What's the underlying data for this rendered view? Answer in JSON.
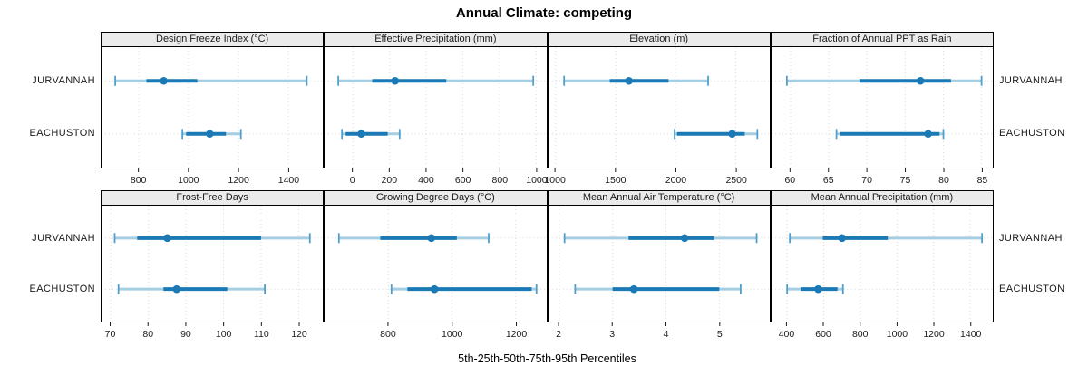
{
  "chart_data": {
    "type": "dotplot",
    "title": "Annual Climate: competing",
    "xlabel": "5th-25th-50th-75th-95th Percentiles",
    "rows": [
      "JURVANNAH",
      "EACHUSTON"
    ],
    "percentile_labels": [
      "5th",
      "25th",
      "50th",
      "75th",
      "95th"
    ],
    "legend_position": "none",
    "grid": "dotted",
    "colors": {
      "median_dot": "#1b7ab5",
      "iqr_line": "#1b7ab5",
      "range_line": "#a6cee3",
      "cap": "#4f9fca",
      "grid": "#d8d8d8",
      "strip_bg": "#ebebeb",
      "border": "#000000",
      "tick_text": "#1a1a1a"
    },
    "panels": [
      {
        "title": "Design Freeze Index (°C)",
        "xlim": [
          650,
          1540
        ],
        "ticks": [
          800,
          1000,
          1200,
          1400
        ],
        "series": [
          {
            "name": "JURVANNAH",
            "p": [
              705,
              830,
              900,
              1035,
              1475
            ]
          },
          {
            "name": "EACHUSTON",
            "p": [
              975,
              990,
              1085,
              1150,
              1210
            ]
          }
        ]
      },
      {
        "title": "Effective Precipitation (mm)",
        "xlim": [
          -155,
          1055
        ],
        "ticks": [
          0,
          200,
          400,
          600,
          800,
          1000
        ],
        "series": [
          {
            "name": "JURVANNAH",
            "p": [
              -80,
              105,
              230,
              510,
              985
            ]
          },
          {
            "name": "EACHUSTON",
            "p": [
              -60,
              -40,
              45,
              190,
              255
            ]
          }
        ]
      },
      {
        "title": "Elevation (m)",
        "xlim": [
          940,
          2785
        ],
        "ticks": [
          1000,
          1500,
          2000,
          2500
        ],
        "series": [
          {
            "name": "JURVANNAH",
            "p": [
              1070,
              1450,
              1610,
              1940,
              2270
            ]
          },
          {
            "name": "EACHUSTON",
            "p": [
              1990,
              2010,
              2470,
              2575,
              2680
            ]
          }
        ]
      },
      {
        "title": "Fraction of Annual PPT as Rain",
        "xlim": [
          57.5,
          86.5
        ],
        "ticks": [
          60,
          65,
          70,
          75,
          80,
          85
        ],
        "series": [
          {
            "name": "JURVANNAH",
            "p": [
              59.5,
              69,
              77,
              81,
              85
            ]
          },
          {
            "name": "EACHUSTON",
            "p": [
              66,
              66.5,
              78,
              79.5,
              80
            ]
          }
        ]
      },
      {
        "title": "Frost-Free Days",
        "xlim": [
          67.5,
          126.5
        ],
        "ticks": [
          70,
          80,
          90,
          100,
          110,
          120
        ],
        "series": [
          {
            "name": "JURVANNAH",
            "p": [
              71,
              77,
              85,
              110,
              123
            ]
          },
          {
            "name": "EACHUSTON",
            "p": [
              72,
              84,
              87.5,
              101,
              111
            ]
          }
        ]
      },
      {
        "title": "Growing Degree Days (°C)",
        "xlim": [
          600,
          1295
        ],
        "ticks": [
          800,
          1000,
          1200
        ],
        "series": [
          {
            "name": "JURVANNAH",
            "p": [
              645,
              775,
              935,
              1015,
              1115
            ]
          },
          {
            "name": "EACHUSTON",
            "p": [
              810,
              860,
              945,
              1250,
              1265
            ]
          }
        ]
      },
      {
        "title": "Mean Annual Air Temperature (°C)",
        "xlim": [
          1.8,
          5.95
        ],
        "ticks": [
          2,
          3,
          4,
          5
        ],
        "series": [
          {
            "name": "JURVANNAH",
            "p": [
              2.1,
              3.3,
              4.35,
              4.9,
              5.7
            ]
          },
          {
            "name": "EACHUSTON",
            "p": [
              2.3,
              3.0,
              3.4,
              5.0,
              5.4
            ]
          }
        ]
      },
      {
        "title": "Mean Annual Precipitation (mm)",
        "xlim": [
          315,
          1525
        ],
        "ticks": [
          400,
          600,
          800,
          1000,
          1200,
          1400
        ],
        "series": [
          {
            "name": "JURVANNAH",
            "p": [
              415,
              595,
              700,
              950,
              1465
            ]
          },
          {
            "name": "EACHUSTON",
            "p": [
              400,
              475,
              570,
              675,
              705
            ]
          }
        ]
      }
    ]
  }
}
